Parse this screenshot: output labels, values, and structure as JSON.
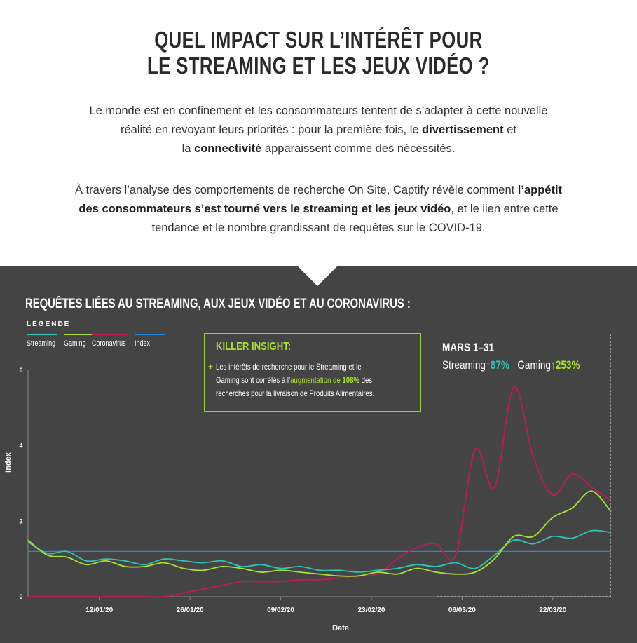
{
  "header": {
    "title_line1": "QUEL IMPACT SUR L’INTÉRÊT POUR",
    "title_line2": "LE STREAMING ET LES JEUX VIDÉO ?"
  },
  "intro": {
    "p1_a": "Le monde est en confinement et les consommateurs tentent de s’adapter à cette nouvelle",
    "p1_b": "réalité en revoyant leurs priorités : pour la première fois, le ",
    "p1_bold1": "divertissement",
    "p1_c": " et",
    "p1_d": "la ",
    "p1_bold2": "connectivité",
    "p1_e": " apparaissent comme des nécessités.",
    "p2_a": "À travers l’analyse des comportements de recherche On Site, Captify révèle comment ",
    "p2_bold1": "l’appétit",
    "p2_bold2": "des consommateurs s’est tourné vers le streaming et les jeux vidéo",
    "p2_b": ", et le lien entre cette",
    "p2_c": "tendance et le nombre grandissant de requêtes sur le COVID-19."
  },
  "section": {
    "chart_title": "REQUÊTES LIÉES AU STREAMING, AUX JEUX VIDÉO ET AU CORONAVIRUS :",
    "legend_title": "LÉGENDE"
  },
  "insight": {
    "title": "KILLER INSIGHT:",
    "plus": "+",
    "text_a": "Les intérêts de recherche pour le Streaming et le",
    "text_b": "Gaming sont corrélés à l’",
    "text_hl": "augmentation de ",
    "text_pct": "108%",
    "text_c": " des",
    "text_d": "recherches pour la livraison de Produits Alimentaires."
  },
  "march": {
    "title": "MARS 1–31",
    "streaming_label": "Streaming",
    "streaming_value": "↑87%",
    "gaming_label": "Gaming",
    "gaming_value": "↑253%"
  },
  "colors": {
    "streaming": "#2ec4b6",
    "gaming": "#a6e22e",
    "coronavirus": "#c2185b",
    "index": "#1e88e5",
    "background": "#444444"
  },
  "chart_data": {
    "type": "line",
    "xlabel": "Date",
    "ylabel": "Index",
    "ylim": [
      0,
      6
    ],
    "yticks": [
      "0",
      "2",
      "4",
      "6"
    ],
    "xticks": [
      {
        "date": "2020-01-12",
        "label": "12/01/20"
      },
      {
        "date": "2020-01-26",
        "label": "26/01/20"
      },
      {
        "date": "2020-02-09",
        "label": "09/02/20"
      },
      {
        "date": "2020-02-23",
        "label": "23/02/20"
      },
      {
        "date": "2020-03-08",
        "label": "08/03/20"
      },
      {
        "date": "2020-03-22",
        "label": "22/03/20"
      }
    ],
    "x": [
      "2020-01-01",
      "2020-01-04",
      "2020-01-07",
      "2020-01-10",
      "2020-01-13",
      "2020-01-16",
      "2020-01-19",
      "2020-01-22",
      "2020-01-25",
      "2020-01-28",
      "2020-01-31",
      "2020-02-03",
      "2020-02-06",
      "2020-02-09",
      "2020-02-12",
      "2020-02-15",
      "2020-02-18",
      "2020-02-21",
      "2020-02-24",
      "2020-02-27",
      "2020-03-01",
      "2020-03-04",
      "2020-03-07",
      "2020-03-10",
      "2020-03-13",
      "2020-03-16",
      "2020-03-19",
      "2020-03-22",
      "2020-03-25",
      "2020-03-28",
      "2020-03-31"
    ],
    "series": [
      {
        "name": "Streaming",
        "values": [
          1.45,
          1.15,
          1.2,
          0.95,
          1.0,
          0.95,
          0.85,
          1.0,
          0.95,
          0.9,
          0.95,
          0.8,
          0.85,
          0.75,
          0.8,
          0.7,
          0.7,
          0.65,
          0.7,
          0.75,
          0.85,
          0.8,
          0.9,
          0.75,
          1.1,
          1.5,
          1.4,
          1.6,
          1.55,
          1.75,
          1.7
        ]
      },
      {
        "name": "Gaming",
        "values": [
          1.5,
          1.1,
          1.05,
          0.85,
          0.95,
          0.8,
          0.8,
          0.9,
          0.75,
          0.7,
          0.8,
          0.75,
          0.65,
          0.7,
          0.65,
          0.6,
          0.55,
          0.55,
          0.65,
          0.6,
          0.75,
          0.65,
          0.6,
          0.65,
          1.0,
          1.6,
          1.6,
          2.1,
          2.35,
          2.8,
          2.25
        ]
      },
      {
        "name": "Coronavirus",
        "values": [
          0,
          0,
          0,
          0,
          0,
          0,
          0,
          0,
          0.1,
          0.2,
          0.3,
          0.4,
          0.4,
          0.4,
          0.45,
          0.45,
          0.5,
          0.55,
          0.6,
          1.0,
          1.3,
          1.4,
          1.1,
          3.9,
          2.9,
          5.55,
          3.7,
          2.7,
          3.25,
          2.9,
          2.55
        ]
      },
      {
        "name": "Index",
        "values": [
          1.2,
          1.2,
          1.2,
          1.2,
          1.2,
          1.2,
          1.2,
          1.2,
          1.2,
          1.2,
          1.2,
          1.2,
          1.2,
          1.2,
          1.2,
          1.2,
          1.2,
          1.2,
          1.2,
          1.2,
          1.2,
          1.2,
          1.2,
          1.2,
          1.2,
          1.2,
          1.2,
          1.2,
          1.2,
          1.2,
          1.2
        ]
      }
    ],
    "highlight_range": [
      "2020-03-01",
      "2020-03-31"
    ],
    "legend_position": "top-left",
    "grid": false
  }
}
